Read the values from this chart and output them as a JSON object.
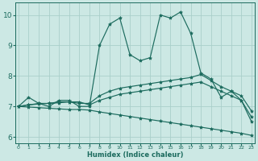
{
  "xlabel": "Humidex (Indice chaleur)",
  "bg_color": "#cce8e4",
  "grid_color": "#aacfca",
  "line_color": "#1c6b5e",
  "x": [
    0,
    1,
    2,
    3,
    4,
    5,
    6,
    7,
    8,
    9,
    10,
    11,
    12,
    13,
    14,
    15,
    16,
    17,
    18,
    19,
    20,
    21,
    22,
    23
  ],
  "line1": [
    7.0,
    7.3,
    7.1,
    7.0,
    7.2,
    7.2,
    7.0,
    7.0,
    9.0,
    9.7,
    9.9,
    8.7,
    8.5,
    8.6,
    10.0,
    9.9,
    10.1,
    9.4,
    8.1,
    7.9,
    7.3,
    7.5,
    7.2,
    6.5
  ],
  "line2": [
    7.0,
    7.05,
    7.1,
    7.1,
    7.15,
    7.15,
    7.1,
    7.1,
    7.35,
    7.5,
    7.6,
    7.65,
    7.7,
    7.75,
    7.8,
    7.85,
    7.9,
    7.95,
    8.05,
    7.85,
    7.65,
    7.5,
    7.35,
    6.85
  ],
  "line3": [
    7.0,
    7.05,
    7.08,
    7.1,
    7.12,
    7.15,
    7.15,
    7.05,
    7.2,
    7.3,
    7.4,
    7.45,
    7.5,
    7.55,
    7.6,
    7.65,
    7.7,
    7.75,
    7.8,
    7.65,
    7.5,
    7.35,
    7.2,
    6.65
  ],
  "line4": [
    7.0,
    6.98,
    6.96,
    6.94,
    6.92,
    6.9,
    6.9,
    6.88,
    6.82,
    6.77,
    6.72,
    6.67,
    6.62,
    6.57,
    6.52,
    6.47,
    6.42,
    6.37,
    6.32,
    6.27,
    6.22,
    6.17,
    6.12,
    6.05
  ],
  "ylim": [
    5.8,
    10.4
  ],
  "xlim": [
    -0.3,
    23.3
  ],
  "yticks": [
    6,
    7,
    8,
    9,
    10
  ],
  "xticks": [
    0,
    1,
    2,
    3,
    4,
    5,
    6,
    7,
    8,
    9,
    10,
    11,
    12,
    13,
    14,
    15,
    16,
    17,
    18,
    19,
    20,
    21,
    22,
    23
  ]
}
